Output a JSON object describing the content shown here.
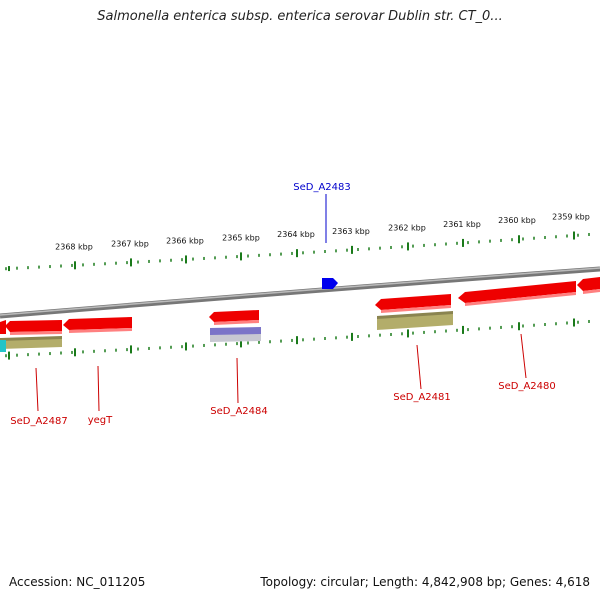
{
  "title": "Salmonella enterica subsp. enterica serovar Dublin str. CT_0...",
  "footer": {
    "accession": "Accession: NC_011205",
    "summary": "Topology: circular; Length: 4,842,908 bp; Genes: 4,618"
  },
  "colors": {
    "gene_arrow": "#ee0000",
    "gene_label": "#cc0000",
    "highlight_label": "#0000cc",
    "ruler_ticks": "#1a7a1a",
    "backbone": "#888888",
    "feature_olive": "#b3ad6a",
    "feature_purple": "#7b74c8",
    "feature_cyan": "#22c4c8",
    "marker_blue": "#0000ee"
  },
  "ruler": {
    "ticks": [
      "2368 kbp",
      "2367 kbp",
      "2366 kbp",
      "2365 kbp",
      "2364 kbp",
      "2363 kbp",
      "2362 kbp",
      "2361 kbp",
      "2360 kbp",
      "2359 kbp"
    ]
  },
  "genes": [
    {
      "name": "SeD_A2487",
      "color": "red"
    },
    {
      "name": "yegT",
      "color": "red"
    },
    {
      "name": "SeD_A2484",
      "color": "red"
    },
    {
      "name": "SeD_A2483",
      "color": "blue"
    },
    {
      "name": "SeD_A2481",
      "color": "red"
    },
    {
      "name": "SeD_A2480",
      "color": "red"
    }
  ]
}
